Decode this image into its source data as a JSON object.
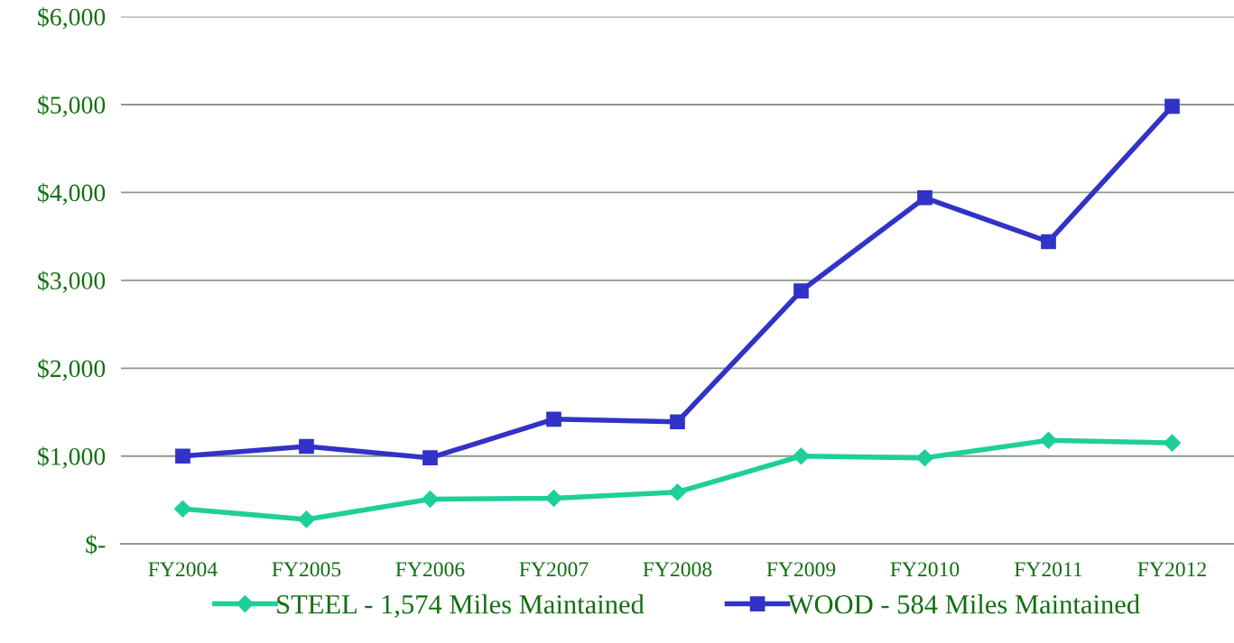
{
  "chart_data": {
    "type": "line",
    "categories": [
      "FY2004",
      "FY2005",
      "FY2006",
      "FY2007",
      "FY2008",
      "FY2009",
      "FY2010",
      "FY2011",
      "FY2012"
    ],
    "series": [
      {
        "name": "STEEL - 1,574 Miles Maintained",
        "color": "#1ecf98",
        "marker": "diamond",
        "values": [
          400,
          280,
          510,
          520,
          590,
          1000,
          980,
          1180,
          1150
        ]
      },
      {
        "name": "WOOD - 584 Miles Maintained",
        "color": "#3232c8",
        "marker": "square",
        "values": [
          1000,
          1110,
          980,
          1420,
          1390,
          2880,
          3940,
          3440,
          4980
        ]
      }
    ],
    "ylim": [
      0,
      6000
    ],
    "yticks": [
      {
        "value": 0,
        "label": "$-"
      },
      {
        "value": 1000,
        "label": "$1,000"
      },
      {
        "value": 2000,
        "label": "$2,000"
      },
      {
        "value": 3000,
        "label": "$3,000"
      },
      {
        "value": 4000,
        "label": "$4,000"
      },
      {
        "value": 5000,
        "label": "$5,000"
      },
      {
        "value": 6000,
        "label": "$6,000"
      }
    ],
    "grid": "y",
    "legend": "bottom",
    "line_style": "solid"
  }
}
